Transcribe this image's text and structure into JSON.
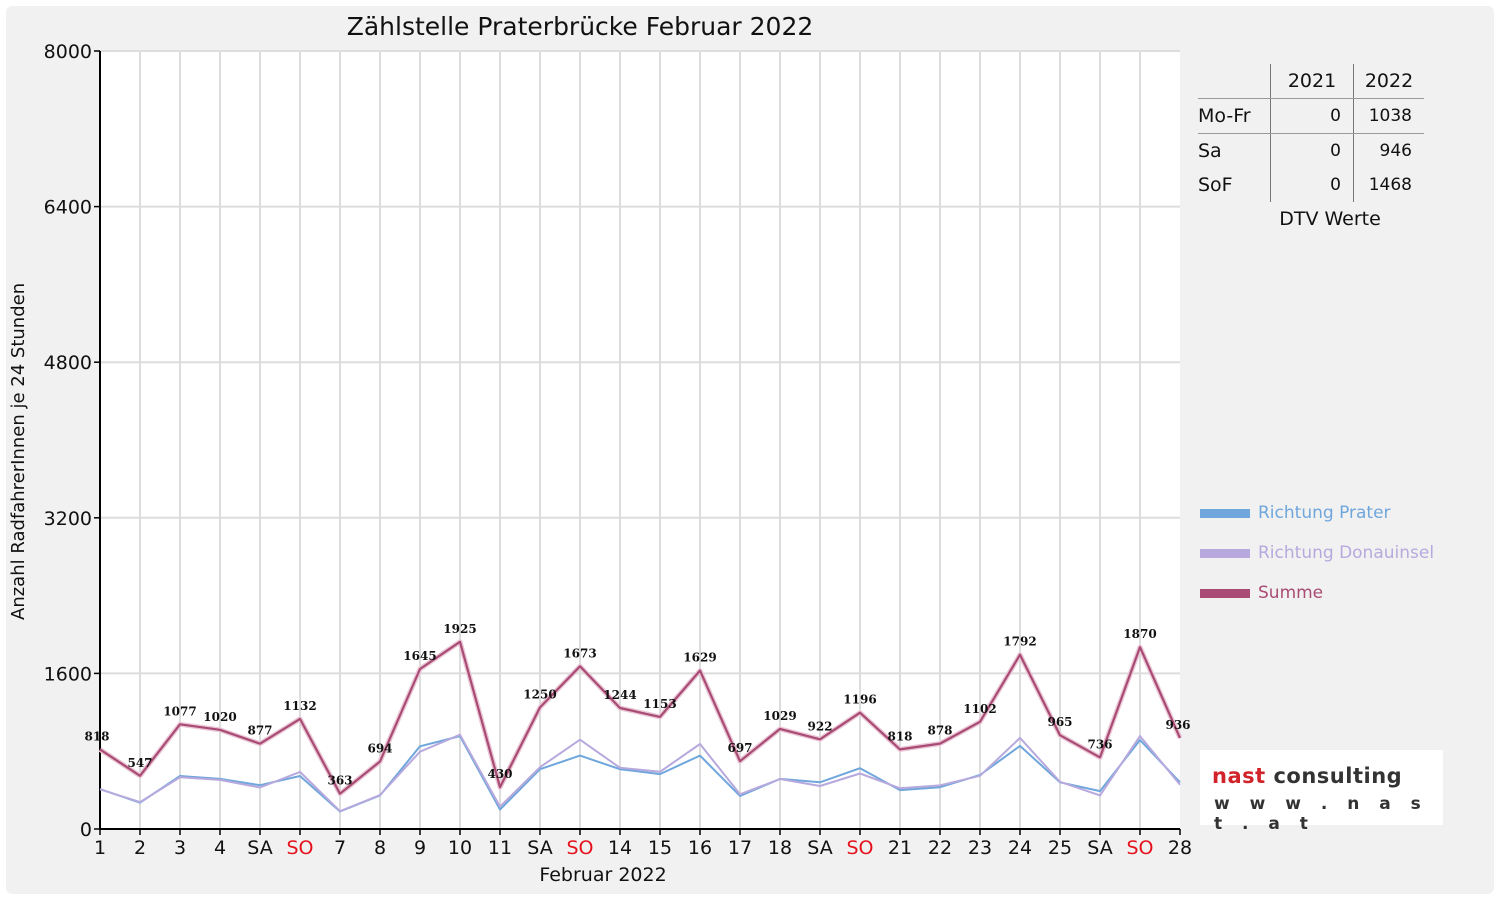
{
  "chart_data": {
    "type": "line",
    "title": "Zählstelle Praterbrücke Februar 2022",
    "xlabel": "Februar 2022",
    "ylabel": "Anzahl RadfahrerInnen je 24 Stunden",
    "ylim": [
      0,
      8000
    ],
    "yticks": [
      "0",
      "1600",
      "3200",
      "4800",
      "6400",
      "8000"
    ],
    "grid": true,
    "legend_position": "right",
    "categories": [
      "1",
      "2",
      "3",
      "4",
      "SA",
      "SO",
      "7",
      "8",
      "9",
      "10",
      "11",
      "SA",
      "SO",
      "14",
      "15",
      "16",
      "17",
      "18",
      "SA",
      "SO",
      "21",
      "22",
      "23",
      "24",
      "25",
      "SA",
      "SO",
      "28"
    ],
    "sunday_indices": [
      5,
      12,
      19,
      26
    ],
    "sunday_color": "#e4121b",
    "series": [
      {
        "name": "Richtung Prater",
        "color": "#6fa6dc",
        "values": [
          410,
          270,
          545,
          515,
          450,
          545,
          180,
          345,
          850,
          955,
          200,
          615,
          755,
          615,
          565,
          755,
          340,
          515,
          480,
          625,
          400,
          430,
          555,
          855,
          480,
          390,
          915,
          480
        ]
      },
      {
        "name": "Richtung Donauinsel",
        "color": "#b7a9dd",
        "values": [
          408,
          277,
          532,
          505,
          427,
          587,
          183,
          349,
          795,
          970,
          230,
          635,
          918,
          629,
          588,
          874,
          357,
          514,
          442,
          571,
          418,
          448,
          547,
          937,
          485,
          346,
          955,
          456
        ]
      },
      {
        "name": "Summe",
        "color": "#a94b74",
        "values": [
          818,
          547,
          1077,
          1020,
          877,
          1132,
          363,
          694,
          1645,
          1925,
          430,
          1250,
          1673,
          1244,
          1153,
          1629,
          697,
          1029,
          922,
          1196,
          818,
          878,
          1102,
          1792,
          965,
          736,
          1870,
          936
        ]
      }
    ]
  },
  "dtv": {
    "caption": "DTV Werte",
    "years": [
      "2021",
      "2022"
    ],
    "rows": [
      {
        "label": "Mo-Fr",
        "v2021": "0",
        "v2022": "1038"
      },
      {
        "label": "Sa",
        "v2021": "0",
        "v2022": "946"
      },
      {
        "label": "SoF",
        "v2021": "0",
        "v2022": "1468"
      }
    ]
  },
  "logo": {
    "name_part1": "nast",
    "name_part2": "consulting",
    "url": "w w w . n a s t . a t"
  }
}
